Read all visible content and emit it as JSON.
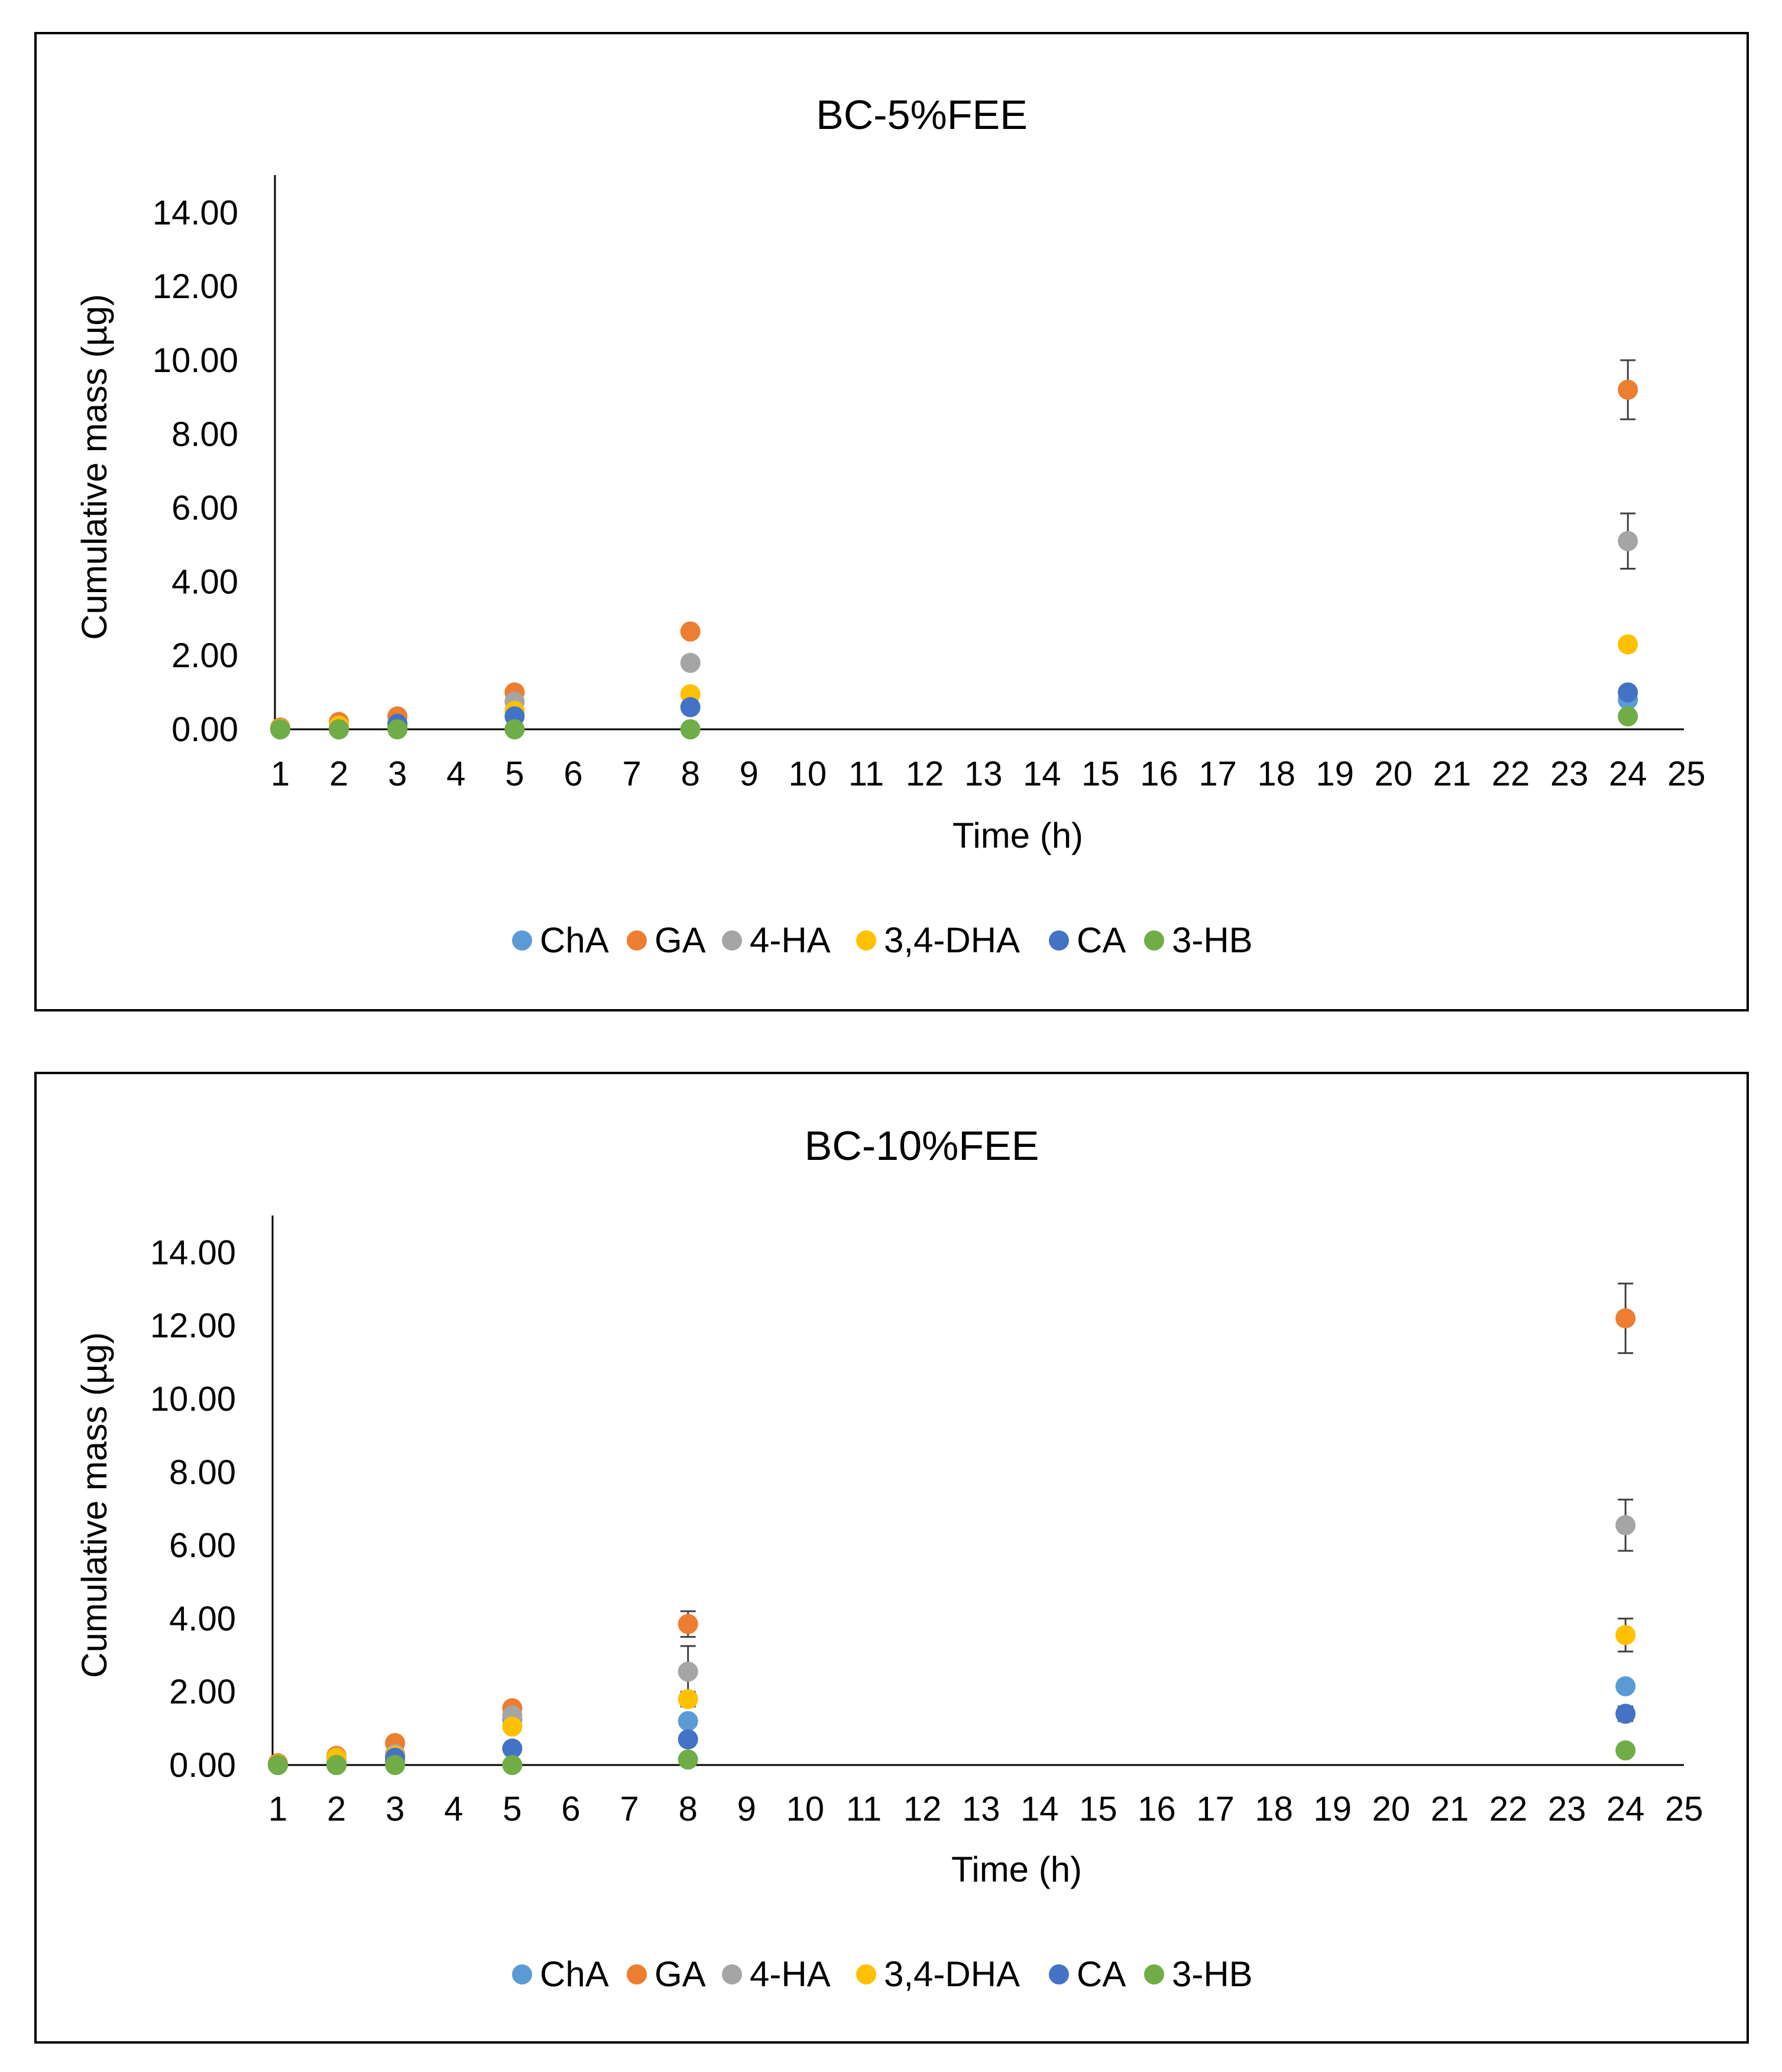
{
  "chart_data": [
    {
      "type": "scatter",
      "title": "BC-5%FEE",
      "xlabel": "Time (h)",
      "ylabel": "Cumulative mass (µg)",
      "xlim": [
        1,
        25
      ],
      "ylim": [
        0,
        15
      ],
      "x_ticks": [
        1,
        2,
        3,
        4,
        5,
        6,
        7,
        8,
        9,
        10,
        11,
        12,
        13,
        14,
        15,
        16,
        17,
        18,
        19,
        20,
        21,
        22,
        23,
        24,
        25
      ],
      "y_ticks": [
        "0.00",
        "2.00",
        "4.00",
        "6.00",
        "8.00",
        "10.00",
        "12.00",
        "14.00"
      ],
      "error_bars": true,
      "legend_position": "bottom",
      "series": [
        {
          "name": "ChA",
          "color": "#5B9BD5",
          "x": [
            1,
            2,
            3,
            5,
            8,
            24
          ],
          "y": [
            0.0,
            0.05,
            0.05,
            0.0,
            0.0,
            0.8
          ],
          "err": [
            0,
            0,
            0,
            0,
            0,
            0.1
          ]
        },
        {
          "name": "GA",
          "color": "#ED7D31",
          "x": [
            1,
            2,
            3,
            5,
            8,
            24
          ],
          "y": [
            0.05,
            0.2,
            0.35,
            1.0,
            2.65,
            9.2
          ],
          "err": [
            0,
            0.05,
            0.05,
            0.1,
            0.1,
            0.8
          ]
        },
        {
          "name": "4-HA",
          "color": "#A5A5A5",
          "x": [
            1,
            2,
            3,
            5,
            8,
            24
          ],
          "y": [
            0.02,
            0.1,
            0.05,
            0.75,
            1.8,
            5.1
          ],
          "err": [
            0,
            0,
            0,
            0.1,
            0.15,
            0.75
          ]
        },
        {
          "name": "3,4-DHA",
          "color": "#FFC000",
          "x": [
            1,
            2,
            3,
            5,
            8,
            24
          ],
          "y": [
            0.02,
            0.1,
            0.15,
            0.5,
            0.95,
            2.3
          ],
          "err": [
            0,
            0,
            0,
            0.05,
            0.1,
            0.15
          ]
        },
        {
          "name": "CA",
          "color": "#4472C4",
          "x": [
            1,
            2,
            3,
            5,
            8,
            24
          ],
          "y": [
            0.0,
            0.0,
            0.15,
            0.35,
            0.6,
            1.0
          ],
          "err": [
            0,
            0,
            0,
            0.05,
            0.05,
            0.1
          ]
        },
        {
          "name": "3-HB",
          "color": "#70AD47",
          "x": [
            1,
            2,
            3,
            5,
            8,
            24
          ],
          "y": [
            0.0,
            0.0,
            0.0,
            0.0,
            0.0,
            0.35
          ],
          "err": [
            0,
            0,
            0,
            0,
            0,
            0.05
          ]
        }
      ]
    },
    {
      "type": "scatter",
      "title": "BC-10%FEE",
      "xlabel": "Time (h)",
      "ylabel": "Cumulative mass (µg)",
      "xlim": [
        1,
        25
      ],
      "ylim": [
        0,
        15
      ],
      "x_ticks": [
        1,
        2,
        3,
        4,
        5,
        6,
        7,
        8,
        9,
        10,
        11,
        12,
        13,
        14,
        15,
        16,
        17,
        18,
        19,
        20,
        21,
        22,
        23,
        24,
        25
      ],
      "y_ticks": [
        "0.00",
        "2.00",
        "4.00",
        "6.00",
        "8.00",
        "10.00",
        "12.00",
        "14.00"
      ],
      "error_bars": true,
      "legend_position": "bottom",
      "series": [
        {
          "name": "ChA",
          "color": "#5B9BD5",
          "x": [
            1,
            2,
            3,
            5,
            8,
            24
          ],
          "y": [
            0.02,
            0.05,
            0.1,
            1.25,
            1.2,
            2.15
          ],
          "err": [
            0,
            0,
            0,
            0.1,
            0.1,
            0.15
          ]
        },
        {
          "name": "GA",
          "color": "#ED7D31",
          "x": [
            1,
            2,
            3,
            5,
            8,
            24
          ],
          "y": [
            0.05,
            0.25,
            0.6,
            1.55,
            3.85,
            12.2
          ],
          "err": [
            0,
            0.05,
            0.1,
            0.15,
            0.35,
            0.95
          ]
        },
        {
          "name": "4-HA",
          "color": "#A5A5A5",
          "x": [
            1,
            2,
            3,
            5,
            8,
            24
          ],
          "y": [
            0.02,
            0.15,
            0.3,
            1.35,
            2.55,
            6.55
          ],
          "err": [
            0,
            0,
            0.05,
            0.15,
            0.7,
            0.7
          ]
        },
        {
          "name": "3,4-DHA",
          "color": "#FFC000",
          "x": [
            1,
            2,
            3,
            5,
            8,
            24
          ],
          "y": [
            0.02,
            0.2,
            0.25,
            1.05,
            1.8,
            3.55
          ],
          "err": [
            0,
            0,
            0.05,
            0.1,
            0.2,
            0.45
          ]
        },
        {
          "name": "CA",
          "color": "#4472C4",
          "x": [
            1,
            2,
            3,
            5,
            8,
            24
          ],
          "y": [
            0.0,
            0.0,
            0.2,
            0.45,
            0.7,
            1.4
          ],
          "err": [
            0,
            0,
            0,
            0.05,
            0.1,
            0.2
          ]
        },
        {
          "name": "3-HB",
          "color": "#70AD47",
          "x": [
            1,
            2,
            3,
            5,
            8,
            24
          ],
          "y": [
            0.0,
            0.0,
            0.0,
            0.0,
            0.15,
            0.4
          ],
          "err": [
            0,
            0,
            0,
            0,
            0.05,
            0.05
          ]
        }
      ]
    }
  ]
}
